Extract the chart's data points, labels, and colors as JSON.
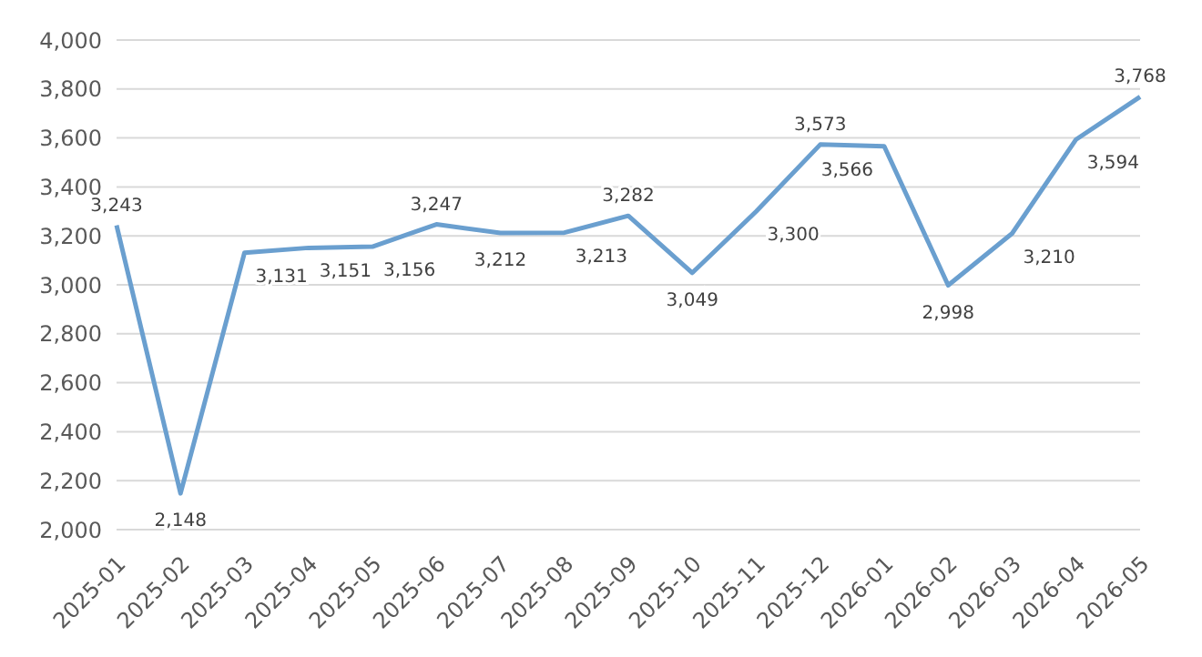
{
  "chart_data": {
    "type": "line",
    "categories": [
      "2025-01",
      "2025-02",
      "2025-03",
      "2025-04",
      "2025-05",
      "2025-06",
      "2025-07",
      "2025-08",
      "2025-09",
      "2025-10",
      "2025-11",
      "2025-12",
      "2026-01",
      "2026-02",
      "2026-03",
      "2026-04",
      "2026-05"
    ],
    "series": [
      {
        "color": "#6a9fcf",
        "values": [
          3243,
          2148,
          3131,
          3151,
          3156,
          3247,
          3212,
          3213,
          3282,
          3049,
          3300,
          3573,
          3566,
          2998,
          3210,
          3594,
          3768
        ],
        "value_labels": [
          "3,243",
          "2,148",
          "3,131",
          "3,151",
          "3,156",
          "3,247",
          "3,212",
          "3,213",
          "3,282",
          "3,049",
          "3,300",
          "3,573",
          "3,566",
          "2,998",
          "3,210",
          "3,594",
          "3,768"
        ]
      }
    ],
    "ylim": [
      2000,
      4000
    ],
    "yticks": [
      {
        "value": 2000,
        "label": "2,000"
      },
      {
        "value": 2200,
        "label": "2,200"
      },
      {
        "value": 2400,
        "label": "2,400"
      },
      {
        "value": 2600,
        "label": "2,600"
      },
      {
        "value": 2800,
        "label": "2,800"
      },
      {
        "value": 3000,
        "label": "3,000"
      },
      {
        "value": 3200,
        "label": "3,200"
      },
      {
        "value": 3400,
        "label": "3,400"
      },
      {
        "value": 3600,
        "label": "3,600"
      },
      {
        "value": 3800,
        "label": "3,800"
      },
      {
        "value": 4000,
        "label": "4,000"
      }
    ],
    "grid": "y",
    "marker": "none",
    "line_style": "solid"
  }
}
